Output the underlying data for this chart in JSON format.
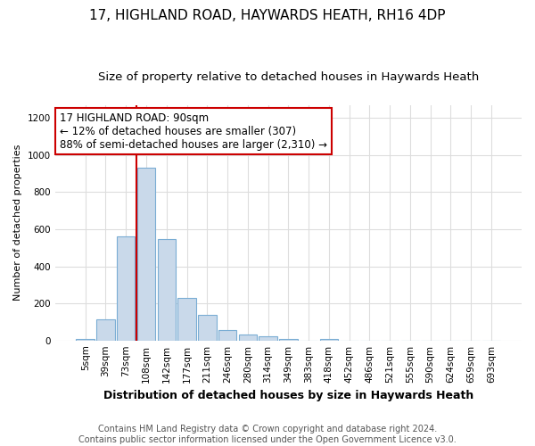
{
  "title1": "17, HIGHLAND ROAD, HAYWARDS HEATH, RH16 4DP",
  "title2": "Size of property relative to detached houses in Haywards Heath",
  "xlabel": "Distribution of detached houses by size in Haywards Heath",
  "ylabel": "Number of detached properties",
  "categories": [
    "5sqm",
    "39sqm",
    "73sqm",
    "108sqm",
    "142sqm",
    "177sqm",
    "211sqm",
    "246sqm",
    "280sqm",
    "314sqm",
    "349sqm",
    "383sqm",
    "418sqm",
    "452sqm",
    "486sqm",
    "521sqm",
    "555sqm",
    "590sqm",
    "624sqm",
    "659sqm",
    "693sqm"
  ],
  "bar_values": [
    8,
    115,
    560,
    930,
    545,
    230,
    140,
    57,
    33,
    22,
    8,
    0,
    8,
    0,
    0,
    0,
    0,
    0,
    0,
    0,
    0
  ],
  "bar_color": "#c9d9ea",
  "bar_edge_color": "#7aadd4",
  "vline_color": "#cc0000",
  "annotation_text": "17 HIGHLAND ROAD: 90sqm\n← 12% of detached houses are smaller (307)\n88% of semi-detached houses are larger (2,310) →",
  "annotation_box_color": "#ffffff",
  "annotation_box_edge": "#cc0000",
  "ylim": [
    0,
    1270
  ],
  "yticks": [
    0,
    200,
    400,
    600,
    800,
    1000,
    1200
  ],
  "bg_color": "#ffffff",
  "plot_bg_color": "#ffffff",
  "grid_color": "#dddddd",
  "footnote": "Contains HM Land Registry data © Crown copyright and database right 2024.\nContains public sector information licensed under the Open Government Licence v3.0.",
  "title1_fontsize": 11,
  "title2_fontsize": 9.5,
  "xlabel_fontsize": 9,
  "ylabel_fontsize": 8,
  "tick_fontsize": 7.5,
  "annotation_fontsize": 8.5,
  "footnote_fontsize": 7
}
